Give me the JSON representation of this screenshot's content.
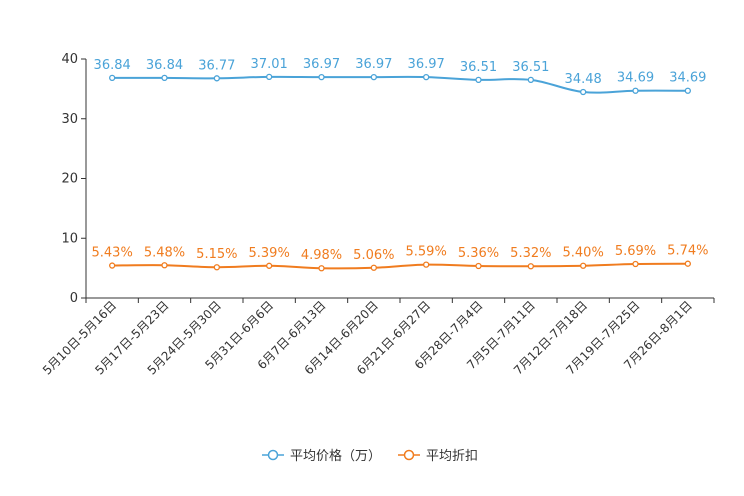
{
  "chart_data": {
    "type": "line",
    "title": "",
    "xlabel": "",
    "ylabel": "",
    "ylim": [
      0,
      40
    ],
    "yticks": [
      0,
      10,
      20,
      30,
      40
    ],
    "grid": false,
    "legend_position": "bottom-center",
    "categories": [
      "5月10日-5月16日",
      "5月17日-5月23日",
      "5月24日-5月30日",
      "5月31日-6月6日",
      "6月7日-6月13日",
      "6月14日-6月20日",
      "6月21日-6月27日",
      "6月28日-7月4日",
      "7月5日-7月11日",
      "7月12日-7月18日",
      "7月19日-7月25日",
      "7月26日-8月1日"
    ],
    "series": [
      {
        "name": "平均价格（万）",
        "color": "#4aa3d8",
        "values": [
          36.84,
          36.84,
          36.77,
          37.01,
          36.97,
          36.97,
          36.97,
          36.51,
          36.51,
          34.48,
          34.69,
          34.69
        ],
        "labels": [
          "36.84",
          "36.84",
          "36.77",
          "37.01",
          "36.97",
          "36.97",
          "36.97",
          "36.51",
          "36.51",
          "34.48",
          "34.69",
          "34.69"
        ]
      },
      {
        "name": "平均折扣",
        "color": "#f07c1f",
        "values": [
          5.43,
          5.48,
          5.15,
          5.39,
          4.98,
          5.06,
          5.59,
          5.36,
          5.32,
          5.4,
          5.69,
          5.74
        ],
        "labels": [
          "5.43%",
          "5.48%",
          "5.15%",
          "5.39%",
          "4.98%",
          "5.06%",
          "5.59%",
          "5.36%",
          "5.32%",
          "5.40%",
          "5.69%",
          "5.74%"
        ]
      }
    ]
  }
}
